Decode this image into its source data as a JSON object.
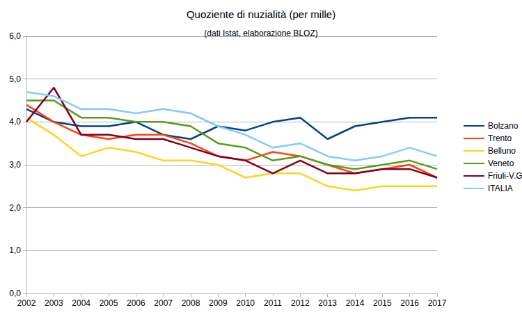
{
  "chart_data": {
    "type": "line",
    "title": "Quoziente di nuzialità (per mille)",
    "subtitle": "(dati Istat, elaborazione BLOZ)",
    "categories": [
      "2002",
      "2003",
      "2004",
      "2005",
      "2006",
      "2007",
      "2008",
      "2009",
      "2010",
      "2011",
      "2012",
      "2013",
      "2014",
      "2015",
      "2016",
      "2017"
    ],
    "series": [
      {
        "name": "Bolzano",
        "color": "#004586",
        "values": [
          4.3,
          4.0,
          3.9,
          3.9,
          4.0,
          3.7,
          3.6,
          3.9,
          3.8,
          4.0,
          4.1,
          3.6,
          3.9,
          4.0,
          4.1,
          4.1
        ]
      },
      {
        "name": "Trento",
        "color": "#ff420e",
        "values": [
          4.4,
          4.0,
          3.7,
          3.6,
          3.7,
          3.7,
          3.5,
          3.2,
          3.1,
          3.3,
          3.2,
          3.0,
          2.8,
          2.9,
          3.0,
          2.7
        ]
      },
      {
        "name": "Belluno",
        "color": "#ffd320",
        "values": [
          4.1,
          3.7,
          3.2,
          3.4,
          3.3,
          3.1,
          3.1,
          3.0,
          2.7,
          2.8,
          2.8,
          2.5,
          2.4,
          2.5,
          2.5,
          2.5
        ]
      },
      {
        "name": "Veneto",
        "color": "#579d1c",
        "values": [
          4.5,
          4.5,
          4.1,
          4.1,
          4.0,
          4.0,
          3.9,
          3.5,
          3.4,
          3.1,
          3.2,
          3.0,
          2.9,
          3.0,
          3.1,
          2.9
        ]
      },
      {
        "name": "Friuli-V.G.",
        "color": "#7e0021",
        "values": [
          4.0,
          4.8,
          3.7,
          3.7,
          3.6,
          3.6,
          3.4,
          3.2,
          3.1,
          2.8,
          3.1,
          2.8,
          2.8,
          2.9,
          2.9,
          2.7
        ]
      },
      {
        "name": "ITALIA",
        "color": "#83caff",
        "values": [
          4.7,
          4.6,
          4.3,
          4.3,
          4.2,
          4.3,
          4.2,
          3.9,
          3.7,
          3.4,
          3.5,
          3.2,
          3.1,
          3.2,
          3.4,
          3.2
        ]
      }
    ],
    "ylim": [
      0,
      6
    ],
    "yticks": [
      {
        "value": 0,
        "label": "0,0"
      },
      {
        "value": 1,
        "label": "1,0"
      },
      {
        "value": 2,
        "label": "2,0"
      },
      {
        "value": 3,
        "label": "3,0"
      },
      {
        "value": 4,
        "label": "4,0"
      },
      {
        "value": 5,
        "label": "5,0"
      },
      {
        "value": 6,
        "label": "6,0"
      }
    ],
    "grid": true,
    "legend": "right"
  }
}
